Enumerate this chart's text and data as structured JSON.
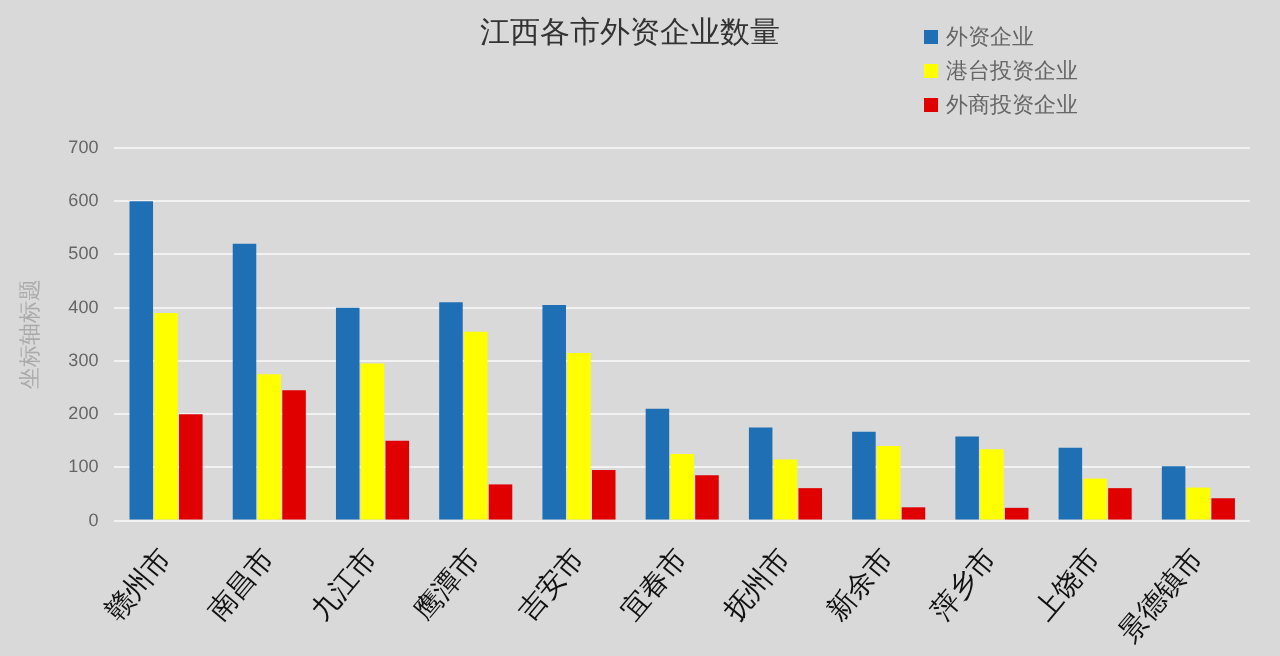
{
  "chart_data": {
    "type": "bar",
    "title": "江西各市外资企业数量",
    "ylabel": "坐标轴标题",
    "categories": [
      "赣州市",
      "南昌市",
      "九江市",
      "鹰潭市",
      "吉安市",
      "宜春市",
      "抚州市",
      "新余市",
      "萍乡市",
      "上饶市",
      "景德镇市"
    ],
    "series": [
      {
        "name": "外资企业",
        "color": "#1f6fb5",
        "values": [
          600,
          520,
          400,
          410,
          405,
          210,
          175,
          167,
          158,
          137,
          102
        ]
      },
      {
        "name": "港台投资企业",
        "color": "#ffff00",
        "values": [
          390,
          275,
          295,
          355,
          315,
          125,
          115,
          140,
          134,
          79,
          62
        ]
      },
      {
        "name": "外商投资企业",
        "color": "#e00000",
        "values": [
          200,
          245,
          150,
          68,
          95,
          85,
          61,
          25,
          24,
          61,
          42
        ]
      }
    ],
    "ylim": [
      0,
      700
    ],
    "yticks": [
      0,
      100,
      200,
      300,
      400,
      500,
      600,
      700
    ],
    "grid": "y",
    "legend": "top right"
  }
}
